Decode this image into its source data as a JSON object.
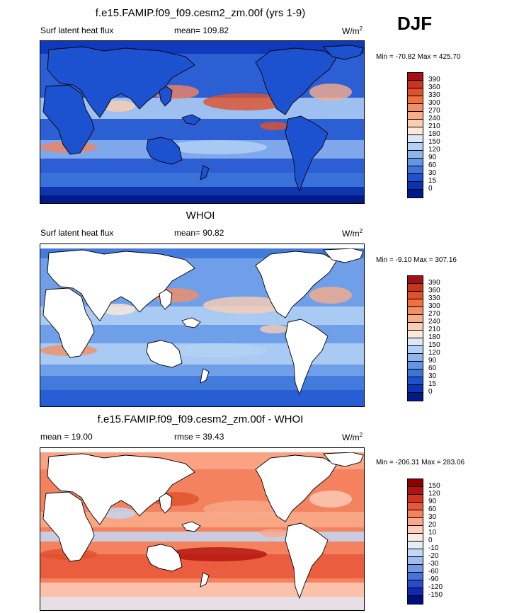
{
  "season_label": "DJF",
  "panels": [
    {
      "title": "f.e15.FAMIP.f09_f09.cesm2_zm.00f (yrs 1-9)",
      "left_label": "Surf latent heat flux",
      "stat_label": "mean= 109.82",
      "units": "W/m",
      "units_sup": "2",
      "minmax": "Min = -70.82 Max = 425.70",
      "colorbar": {
        "ticks": [
          "390",
          "360",
          "330",
          "300",
          "270",
          "240",
          "210",
          "180",
          "150",
          "120",
          "90",
          "60",
          "30",
          "15",
          "0"
        ],
        "colors": [
          "#a50f15",
          "#c8341d",
          "#e0502b",
          "#f07040",
          "#f48e63",
          "#f8ad8a",
          "#fbcdb2",
          "#fde8d8",
          "#d9e8fb",
          "#b3d1f5",
          "#8db5ee",
          "#6496e5",
          "#3c74da",
          "#1c52cf",
          "#0a34b8",
          "#001a8c"
        ]
      },
      "field": "model"
    },
    {
      "title": "WHOI",
      "left_label": "Surf latent heat flux",
      "stat_label": "mean=  90.82",
      "units": "W/m",
      "units_sup": "2",
      "minmax": "Min =  -9.10 Max = 307.16",
      "colorbar": {
        "ticks": [
          "390",
          "360",
          "330",
          "300",
          "270",
          "240",
          "210",
          "180",
          "150",
          "120",
          "90",
          "60",
          "30",
          "15",
          "0"
        ],
        "colors": [
          "#a50f15",
          "#c8341d",
          "#e0502b",
          "#f07040",
          "#f48e63",
          "#f8ad8a",
          "#fbcdb2",
          "#fde8d8",
          "#d9e8fb",
          "#b3d1f5",
          "#8db5ee",
          "#6496e5",
          "#3c74da",
          "#1c52cf",
          "#0a34b8",
          "#001a8c"
        ]
      },
      "field": "obs"
    },
    {
      "title": "f.e15.FAMIP.f09_f09.cesm2_zm.00f - WHOI",
      "left_label": "mean =  19.00",
      "stat_label": "rmse =  39.43",
      "units": "W/m",
      "units_sup": "2",
      "minmax": "Min = -206.31 Max = 283.06",
      "colorbar": {
        "ticks": [
          "150",
          "120",
          "90",
          "60",
          "30",
          "20",
          "10",
          "0",
          "-10",
          "-20",
          "-30",
          "-60",
          "-90",
          "-120",
          "-150"
        ],
        "colors": [
          "#8c0000",
          "#b2120e",
          "#d2321e",
          "#e8573a",
          "#f4825f",
          "#f9a98a",
          "#fccdb8",
          "#fdebe0",
          "#e4eefb",
          "#c2d8f6",
          "#9cbdf0",
          "#7399e6",
          "#4a73da",
          "#2a4ccc",
          "#1028b0",
          "#00107a"
        ]
      },
      "field": "diff"
    }
  ]
}
